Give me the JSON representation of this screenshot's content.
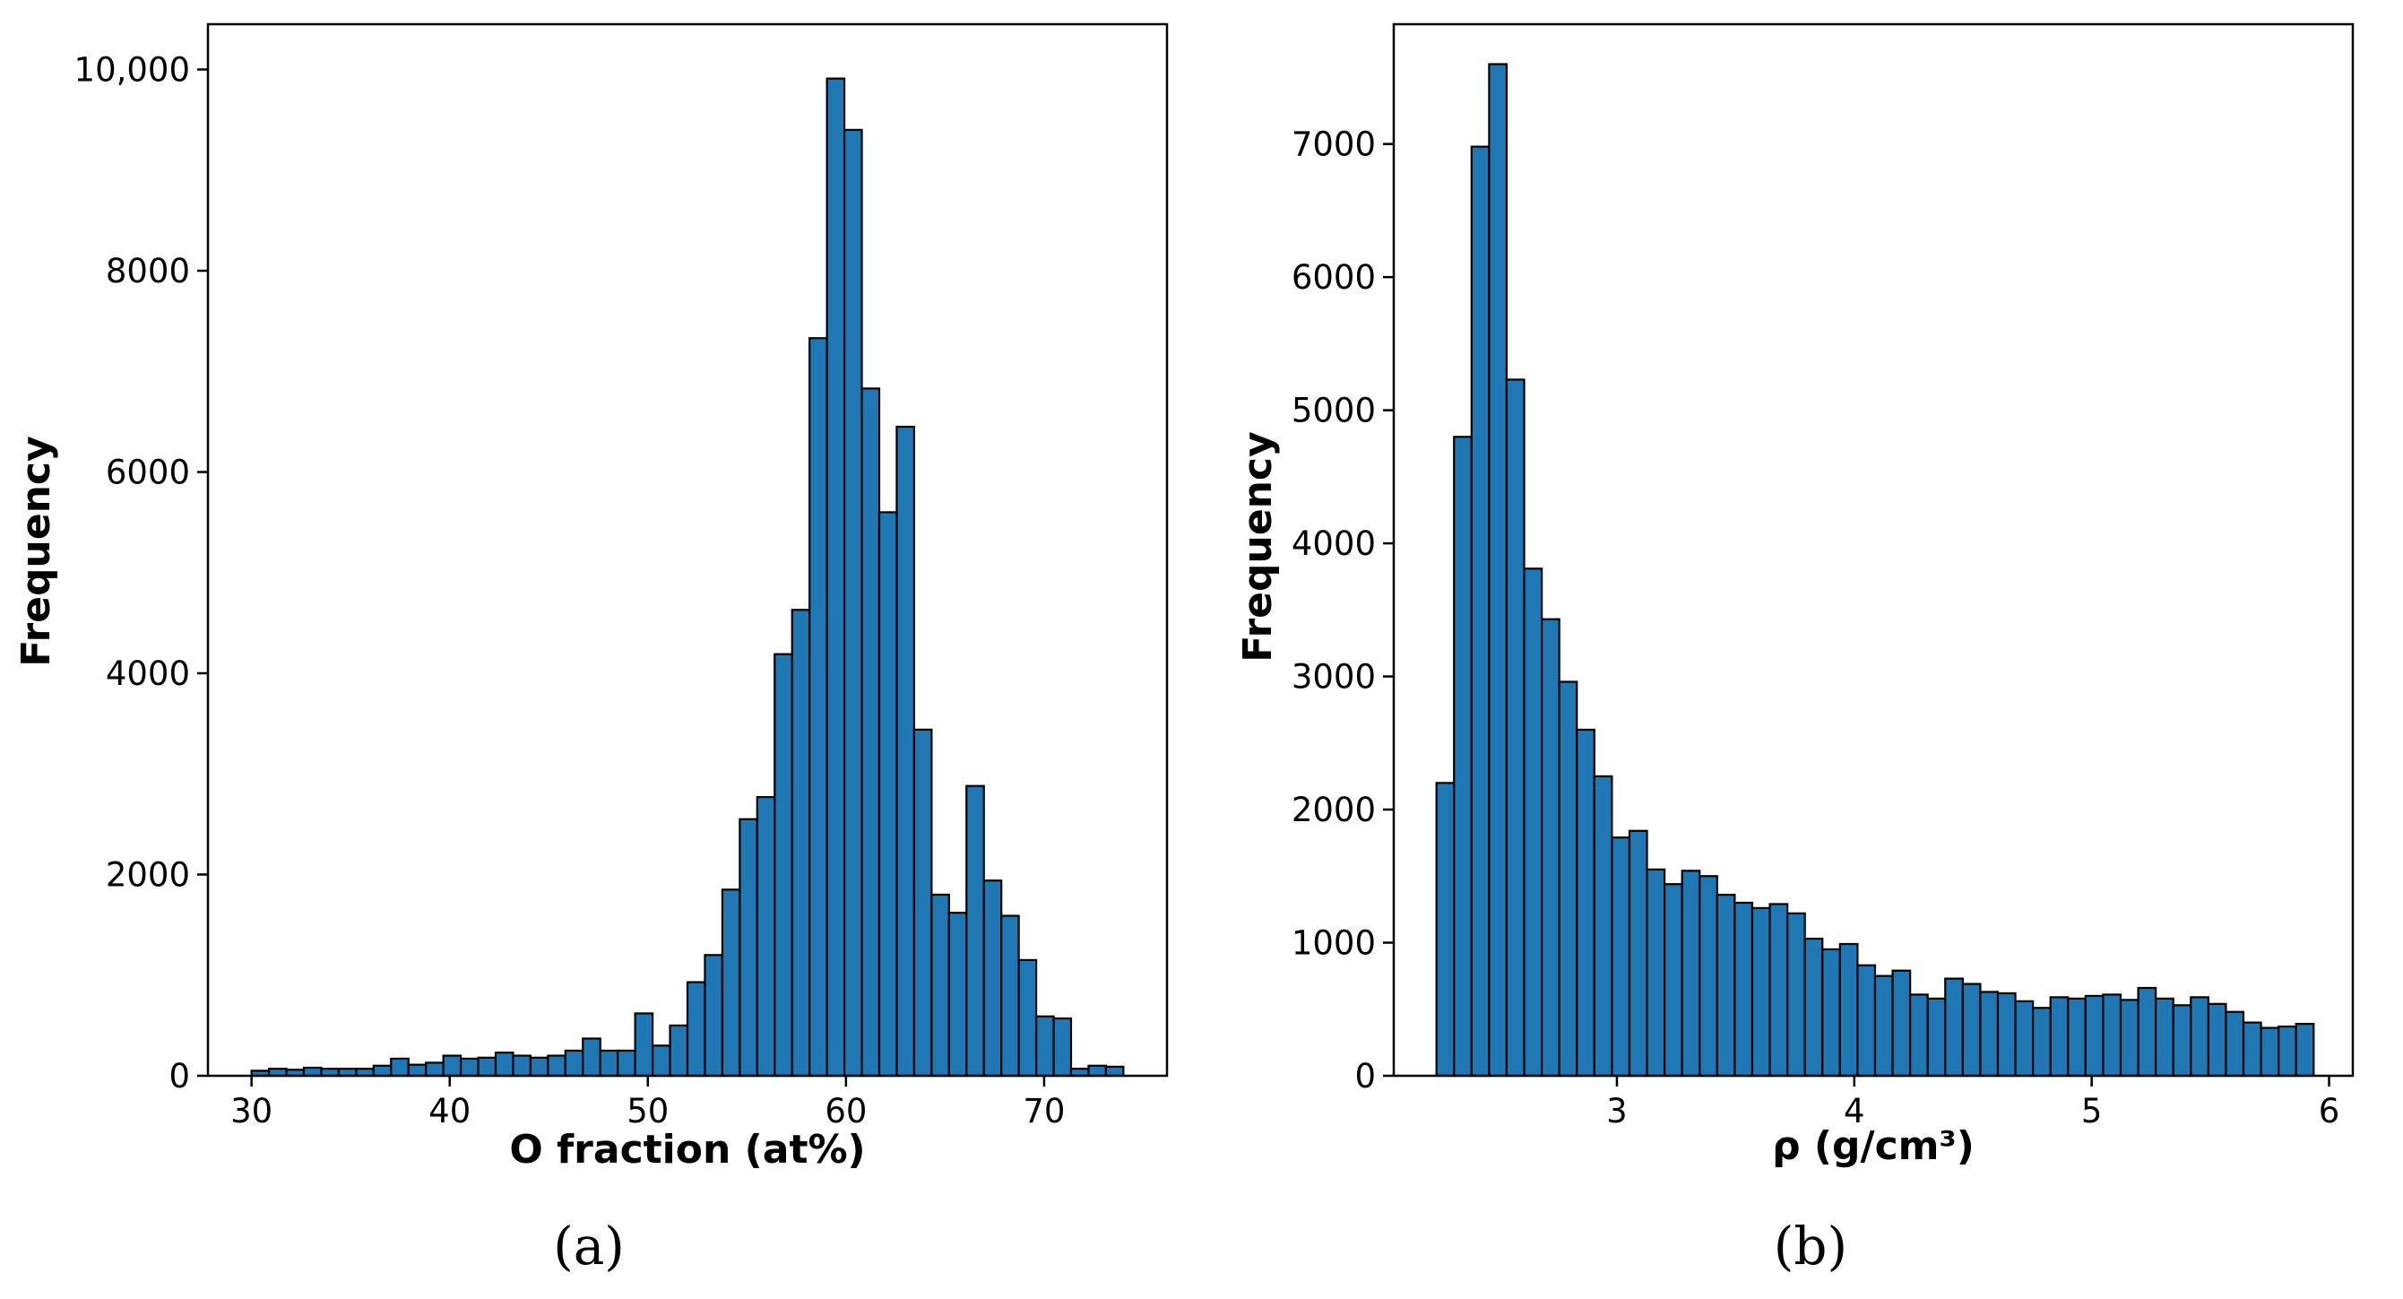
{
  "chart_data": [
    {
      "type": "bar",
      "subtype": "histogram",
      "panel_label": "(a)",
      "title": "",
      "xlabel": "O fraction (at%)",
      "ylabel": "Frequency",
      "xlim": [
        27.8,
        76.2
      ],
      "ylim": [
        0,
        10450
      ],
      "xticks": [
        30,
        40,
        50,
        60,
        70
      ],
      "xtick_labels": [
        "30",
        "40",
        "50",
        "60",
        "70"
      ],
      "yticks": [
        0,
        2000,
        4000,
        6000,
        8000,
        10000
      ],
      "ytick_labels": [
        "0",
        "2000",
        "4000",
        "6000",
        "8000",
        "10,000"
      ],
      "bin_start": 30,
      "bin_width": 0.88,
      "values": [
        50,
        70,
        60,
        80,
        70,
        70,
        70,
        100,
        170,
        110,
        130,
        200,
        170,
        180,
        230,
        200,
        180,
        200,
        250,
        370,
        250,
        250,
        620,
        300,
        500,
        930,
        1200,
        1850,
        2550,
        2770,
        4190,
        4630,
        7330,
        9910,
        9400,
        6830,
        5600,
        6450,
        3440,
        1800,
        1620,
        2880,
        1940,
        1590,
        1150,
        590,
        570,
        70,
        100,
        90
      ],
      "grid": false
    },
    {
      "type": "bar",
      "subtype": "histogram",
      "panel_label": "(b)",
      "title": "",
      "xlabel": "ρ (g/cm³)",
      "ylabel": "Frequency",
      "xlim": [
        2.06,
        6.1
      ],
      "ylim": [
        0,
        7900
      ],
      "xticks": [
        3,
        4,
        5,
        6
      ],
      "xtick_labels": [
        "3",
        "4",
        "5",
        "6"
      ],
      "yticks": [
        0,
        1000,
        2000,
        3000,
        4000,
        5000,
        6000,
        7000
      ],
      "ytick_labels": [
        "0",
        "1000",
        "2000",
        "3000",
        "4000",
        "5000",
        "6000",
        "7000"
      ],
      "bin_start": 2.24,
      "bin_width": 0.0739,
      "values": [
        2200,
        4800,
        6980,
        7600,
        5230,
        3810,
        3430,
        2960,
        2600,
        2250,
        1790,
        1840,
        1550,
        1440,
        1540,
        1500,
        1360,
        1300,
        1260,
        1290,
        1220,
        1030,
        950,
        990,
        830,
        750,
        790,
        610,
        580,
        730,
        690,
        630,
        620,
        560,
        510,
        590,
        580,
        600,
        610,
        570,
        660,
        580,
        530,
        590,
        540,
        480,
        400,
        360,
        370,
        390
      ],
      "grid": false
    }
  ]
}
